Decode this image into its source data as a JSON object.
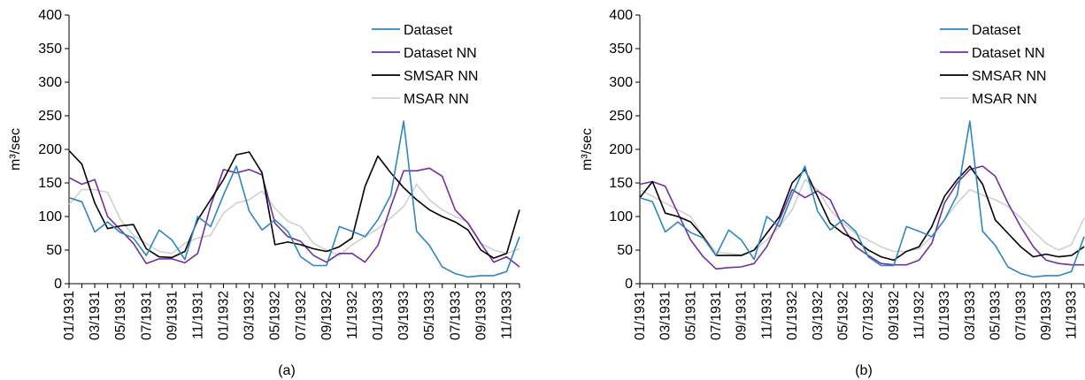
{
  "chart_data": [
    {
      "type": "line",
      "panel_label": "(a)",
      "ylabel": "m³/sec",
      "ylim": [
        0,
        400
      ],
      "yticks": [
        0,
        50,
        100,
        150,
        200,
        250,
        300,
        350,
        400
      ],
      "x_tick_labels": [
        "01/1931",
        "03/1931",
        "05/1931",
        "07/1931",
        "09/1931",
        "11/1931",
        "01/1932",
        "03/1932",
        "05/1932",
        "07/1932",
        "09/1932",
        "11/1932",
        "01/1933",
        "03/1933",
        "05/1933",
        "07/1933",
        "09/1933",
        "11/1933"
      ],
      "grid": false,
      "legend_position": "top-right",
      "series": [
        {
          "name": "Dataset",
          "color": "#2e86c1",
          "values": [
            128,
            122,
            77,
            92,
            76,
            68,
            42,
            80,
            65,
            36,
            100,
            85,
            132,
            175,
            108,
            80,
            95,
            78,
            40,
            27,
            27,
            85,
            78,
            70,
            95,
            132,
            242,
            78,
            57,
            25,
            15,
            10,
            12,
            12,
            18,
            70
          ]
        },
        {
          "name": "Dataset NN",
          "color": "#7030a0",
          "values": [
            158,
            148,
            155,
            100,
            80,
            60,
            30,
            37,
            37,
            31,
            45,
            116,
            170,
            165,
            170,
            162,
            90,
            70,
            63,
            42,
            32,
            45,
            45,
            32,
            57,
            115,
            168,
            168,
            172,
            160,
            110,
            90,
            60,
            32,
            40,
            25
          ]
        },
        {
          "name": "SMSAR NN",
          "color": "#000000",
          "values": [
            198,
            178,
            120,
            82,
            86,
            88,
            52,
            40,
            39,
            48,
            95,
            125,
            155,
            192,
            196,
            165,
            58,
            62,
            58,
            52,
            48,
            55,
            68,
            145,
            190,
            165,
            143,
            125,
            110,
            100,
            92,
            80,
            50,
            38,
            45,
            110
          ]
        },
        {
          "name": "MSAR NN",
          "color": "#d0d0d0",
          "values": [
            118,
            140,
            140,
            136,
            95,
            72,
            60,
            48,
            45,
            60,
            68,
            72,
            105,
            120,
            125,
            138,
            112,
            93,
            85,
            60,
            50,
            42,
            58,
            70,
            82,
            98,
            115,
            148,
            125,
            110,
            100,
            92,
            60,
            50,
            45,
            52
          ]
        }
      ]
    },
    {
      "type": "line",
      "panel_label": "(b)",
      "ylabel": "m³/sec",
      "ylim": [
        0,
        400
      ],
      "yticks": [
        0,
        50,
        100,
        150,
        200,
        250,
        300,
        350,
        400
      ],
      "x_tick_labels": [
        "01/1931",
        "03/1931",
        "05/1931",
        "07/1931",
        "09/1931",
        "11/1931",
        "01/1932",
        "03/1932",
        "05/1932",
        "07/1932",
        "09/1932",
        "11/1932",
        "01/1933",
        "03/1933",
        "05/1933",
        "07/1933",
        "09/1933",
        "11/1933"
      ],
      "grid": false,
      "legend_position": "top-right",
      "series": [
        {
          "name": "Dataset",
          "color": "#2e86c1",
          "values": [
            128,
            122,
            77,
            92,
            76,
            68,
            42,
            80,
            65,
            36,
            100,
            85,
            132,
            175,
            108,
            80,
            95,
            78,
            40,
            27,
            27,
            85,
            78,
            70,
            95,
            132,
            242,
            78,
            57,
            25,
            15,
            10,
            12,
            12,
            18,
            70
          ]
        },
        {
          "name": "Dataset NN",
          "color": "#7030a0",
          "values": [
            148,
            152,
            145,
            105,
            65,
            40,
            22,
            24,
            25,
            30,
            55,
            95,
            140,
            128,
            138,
            125,
            85,
            55,
            42,
            30,
            28,
            28,
            35,
            60,
            120,
            150,
            170,
            175,
            160,
            120,
            85,
            55,
            35,
            30,
            28,
            28
          ]
        },
        {
          "name": "SMSAR NN",
          "color": "#000000",
          "values": [
            128,
            152,
            105,
            100,
            92,
            70,
            42,
            42,
            42,
            50,
            75,
            100,
            150,
            170,
            130,
            90,
            75,
            65,
            50,
            40,
            35,
            48,
            55,
            85,
            130,
            155,
            175,
            148,
            95,
            75,
            55,
            40,
            44,
            40,
            42,
            55
          ]
        },
        {
          "name": "MSAR NN",
          "color": "#d0d0d0",
          "values": [
            140,
            130,
            120,
            110,
            100,
            70,
            47,
            45,
            43,
            50,
            65,
            85,
            110,
            155,
            140,
            110,
            90,
            75,
            65,
            55,
            48,
            48,
            52,
            70,
            95,
            120,
            140,
            132,
            125,
            115,
            98,
            78,
            60,
            50,
            58,
            98
          ]
        }
      ]
    }
  ]
}
